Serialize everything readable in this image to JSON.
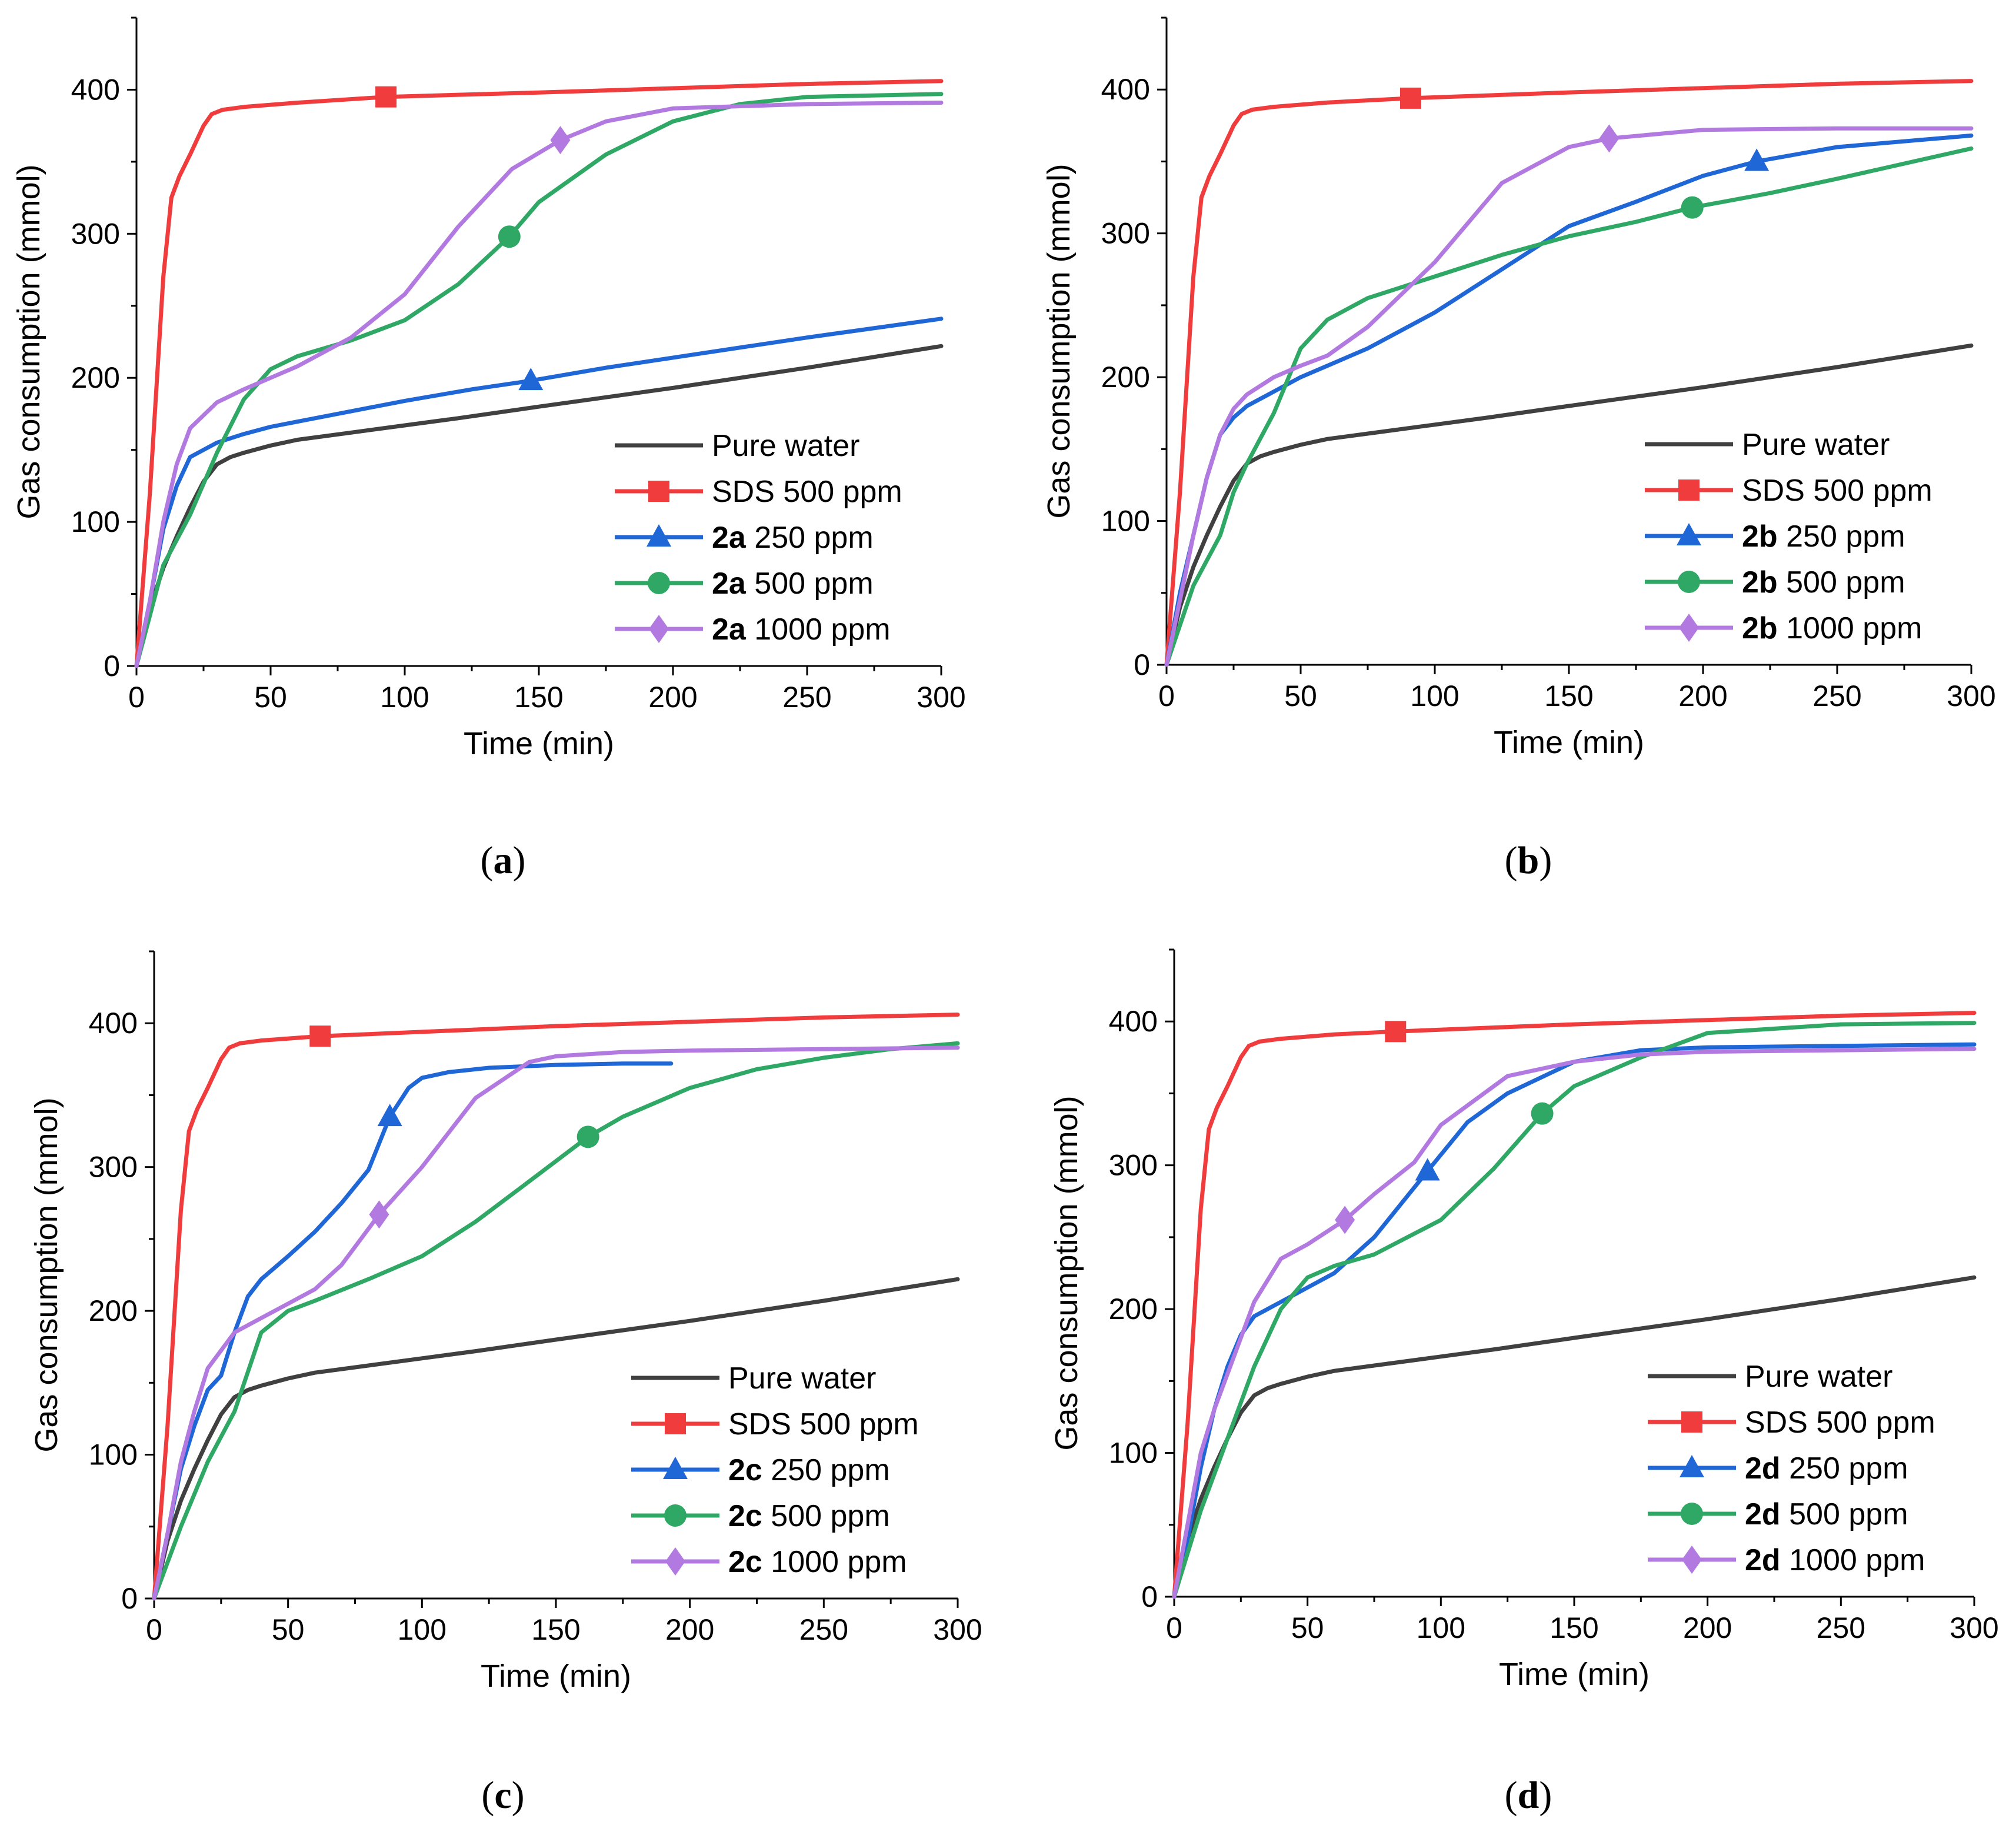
{
  "colors": {
    "pure_water": "#404040",
    "sds": "#f03c3c",
    "c250": "#1f66d6",
    "c500": "#2fa866",
    "c1000": "#b27ae0"
  },
  "chart_data": [
    {
      "type": "line",
      "panel_label": "a",
      "compound": "2a",
      "xlabel": "Time (min)",
      "ylabel": "Gas consumption (mmol)",
      "xlim": [
        0,
        300
      ],
      "ylim": [
        0,
        450
      ],
      "xticks": [
        0,
        50,
        100,
        150,
        200,
        250,
        300
      ],
      "yticks": [
        0,
        100,
        200,
        300,
        400
      ],
      "legend_position": "bottom-right",
      "series": [
        {
          "name": "Pure water",
          "key": "pure_water",
          "marker": "none",
          "x": [
            0,
            5,
            10,
            15,
            20,
            25,
            30,
            35,
            40,
            50,
            60,
            80,
            100,
            120,
            150,
            200,
            250,
            300
          ],
          "y": [
            0,
            40,
            68,
            90,
            110,
            128,
            140,
            145,
            148,
            153,
            157,
            162,
            167,
            172,
            180,
            193,
            207,
            222
          ],
          "marker_at": null
        },
        {
          "name": "SDS 500 ppm",
          "key": "sds",
          "marker": "square",
          "x": [
            0,
            5,
            10,
            13,
            16,
            20,
            25,
            28,
            32,
            40,
            60,
            93,
            150,
            200,
            250,
            300
          ],
          "y": [
            0,
            120,
            270,
            325,
            340,
            355,
            375,
            383,
            386,
            388,
            391,
            395,
            398,
            401,
            404,
            406
          ],
          "marker_at": [
            93,
            395
          ]
        },
        {
          "name": "250 ppm",
          "key": "c250",
          "marker": "triangle",
          "x": [
            0,
            5,
            10,
            15,
            20,
            30,
            40,
            50,
            75,
            100,
            125,
            147,
            175,
            200,
            250,
            300
          ],
          "y": [
            0,
            45,
            95,
            125,
            145,
            155,
            161,
            166,
            175,
            184,
            192,
            198,
            207,
            214,
            228,
            241
          ],
          "marker_at": [
            147,
            198
          ]
        },
        {
          "name": "500 ppm",
          "key": "c500",
          "marker": "circle",
          "x": [
            0,
            10,
            20,
            30,
            40,
            50,
            60,
            80,
            100,
            120,
            139,
            150,
            175,
            200,
            225,
            250,
            300
          ],
          "y": [
            0,
            70,
            105,
            148,
            185,
            206,
            215,
            226,
            240,
            265,
            298,
            322,
            355,
            378,
            390,
            395,
            397
          ],
          "marker_at": [
            139,
            298
          ]
        },
        {
          "name": "1000 ppm",
          "key": "c1000",
          "marker": "diamond",
          "x": [
            0,
            5,
            10,
            15,
            20,
            30,
            40,
            50,
            60,
            80,
            100,
            120,
            140,
            158,
            175,
            200,
            250,
            300
          ],
          "y": [
            0,
            45,
            100,
            140,
            165,
            183,
            192,
            200,
            208,
            228,
            258,
            305,
            345,
            365,
            378,
            387,
            390,
            391
          ],
          "marker_at": [
            158,
            365
          ]
        }
      ]
    },
    {
      "type": "line",
      "panel_label": "b",
      "compound": "2b",
      "xlabel": "Time (min)",
      "ylabel": "Gas consumption (mmol)",
      "xlim": [
        0,
        300
      ],
      "ylim": [
        0,
        450
      ],
      "xticks": [
        0,
        50,
        100,
        150,
        200,
        250,
        300
      ],
      "yticks": [
        0,
        100,
        200,
        300,
        400
      ],
      "legend_position": "bottom-right",
      "series": [
        {
          "name": "Pure water",
          "key": "pure_water",
          "marker": "none",
          "x": [
            0,
            5,
            10,
            15,
            20,
            25,
            30,
            35,
            40,
            50,
            60,
            80,
            100,
            120,
            150,
            200,
            250,
            300
          ],
          "y": [
            0,
            40,
            68,
            90,
            110,
            128,
            140,
            145,
            148,
            153,
            157,
            162,
            167,
            172,
            180,
            193,
            207,
            222
          ],
          "marker_at": null
        },
        {
          "name": "SDS 500 ppm",
          "key": "sds",
          "marker": "square",
          "x": [
            0,
            5,
            10,
            13,
            16,
            20,
            25,
            28,
            32,
            40,
            60,
            91,
            150,
            200,
            250,
            300
          ],
          "y": [
            0,
            120,
            270,
            325,
            340,
            355,
            375,
            383,
            386,
            388,
            391,
            394,
            398,
            401,
            404,
            406
          ],
          "marker_at": [
            91,
            394
          ]
        },
        {
          "name": "250 ppm",
          "key": "c250",
          "marker": "triangle",
          "x": [
            0,
            5,
            10,
            15,
            20,
            25,
            30,
            40,
            50,
            60,
            75,
            100,
            125,
            150,
            175,
            200,
            220,
            250,
            300
          ],
          "y": [
            0,
            50,
            90,
            130,
            160,
            172,
            180,
            190,
            200,
            208,
            220,
            245,
            275,
            305,
            322,
            340,
            350,
            360,
            368
          ],
          "marker_at": [
            220,
            350
          ]
        },
        {
          "name": "500 ppm",
          "key": "c500",
          "marker": "circle",
          "x": [
            0,
            10,
            20,
            25,
            30,
            40,
            50,
            60,
            75,
            100,
            125,
            150,
            175,
            196,
            225,
            250,
            300
          ],
          "y": [
            0,
            55,
            90,
            120,
            140,
            175,
            220,
            240,
            255,
            270,
            285,
            298,
            308,
            318,
            328,
            338,
            359
          ],
          "marker_at": [
            196,
            318
          ]
        },
        {
          "name": "1000 ppm",
          "key": "c1000",
          "marker": "diamond",
          "x": [
            0,
            5,
            10,
            15,
            20,
            25,
            30,
            40,
            50,
            60,
            75,
            90,
            100,
            125,
            150,
            165,
            200,
            250,
            300
          ],
          "y": [
            0,
            45,
            90,
            130,
            160,
            178,
            188,
            200,
            208,
            215,
            235,
            262,
            280,
            335,
            360,
            366,
            372,
            373,
            373
          ],
          "marker_at": [
            165,
            366
          ]
        }
      ]
    },
    {
      "type": "line",
      "panel_label": "c",
      "compound": "2c",
      "xlabel": "Time (min)",
      "ylabel": "Gas consumption (mmol)",
      "xlim": [
        0,
        300
      ],
      "ylim": [
        0,
        450
      ],
      "xticks": [
        0,
        50,
        100,
        150,
        200,
        250,
        300
      ],
      "yticks": [
        0,
        100,
        200,
        300,
        400
      ],
      "legend_position": "bottom-right",
      "series": [
        {
          "name": "Pure water",
          "key": "pure_water",
          "marker": "none",
          "x": [
            0,
            5,
            10,
            15,
            20,
            25,
            30,
            35,
            40,
            50,
            60,
            80,
            100,
            120,
            150,
            200,
            250,
            300
          ],
          "y": [
            0,
            40,
            68,
            90,
            110,
            128,
            140,
            145,
            148,
            153,
            157,
            162,
            167,
            172,
            180,
            193,
            207,
            222
          ],
          "marker_at": null
        },
        {
          "name": "SDS 500 ppm",
          "key": "sds",
          "marker": "square",
          "x": [
            0,
            5,
            10,
            13,
            16,
            20,
            25,
            28,
            32,
            40,
            62,
            100,
            150,
            200,
            250,
            300
          ],
          "y": [
            0,
            120,
            270,
            325,
            340,
            355,
            375,
            383,
            386,
            388,
            391,
            394,
            398,
            401,
            404,
            406
          ],
          "marker_at": [
            62,
            391
          ]
        },
        {
          "name": "250 ppm",
          "key": "c250",
          "marker": "triangle",
          "x": [
            0,
            5,
            10,
            15,
            20,
            25,
            30,
            35,
            40,
            50,
            60,
            70,
            80,
            88,
            95,
            100,
            110,
            125,
            150,
            175,
            193
          ],
          "y": [
            0,
            45,
            90,
            120,
            145,
            155,
            185,
            210,
            222,
            238,
            255,
            275,
            298,
            335,
            355,
            362,
            366,
            369,
            371,
            372,
            372
          ],
          "marker_at": [
            88,
            335
          ]
        },
        {
          "name": "500 ppm",
          "key": "c500",
          "marker": "circle",
          "x": [
            0,
            10,
            20,
            30,
            40,
            50,
            60,
            80,
            100,
            120,
            140,
            162,
            175,
            200,
            225,
            250,
            275,
            300
          ],
          "y": [
            0,
            50,
            95,
            130,
            185,
            200,
            207,
            222,
            238,
            262,
            290,
            321,
            335,
            355,
            368,
            376,
            382,
            386
          ],
          "marker_at": [
            162,
            321
          ]
        },
        {
          "name": "1000 ppm",
          "key": "c1000",
          "marker": "diamond",
          "x": [
            0,
            5,
            10,
            15,
            20,
            30,
            40,
            50,
            60,
            70,
            84,
            100,
            120,
            140,
            150,
            175,
            200,
            250,
            300
          ],
          "y": [
            0,
            45,
            95,
            130,
            160,
            185,
            195,
            205,
            215,
            232,
            267,
            300,
            348,
            373,
            377,
            380,
            381,
            382,
            383
          ],
          "marker_at": [
            84,
            267
          ]
        }
      ]
    },
    {
      "type": "line",
      "panel_label": "d",
      "compound": "2d",
      "xlabel": "Time (min)",
      "ylabel": "Gas consumption (mmol)",
      "xlim": [
        0,
        300
      ],
      "ylim": [
        0,
        450
      ],
      "xticks": [
        0,
        50,
        100,
        150,
        200,
        250,
        300
      ],
      "yticks": [
        0,
        100,
        200,
        300,
        400
      ],
      "legend_position": "bottom-right",
      "series": [
        {
          "name": "Pure water",
          "key": "pure_water",
          "marker": "none",
          "x": [
            0,
            5,
            10,
            15,
            20,
            25,
            30,
            35,
            40,
            50,
            60,
            80,
            100,
            120,
            150,
            200,
            250,
            300
          ],
          "y": [
            0,
            40,
            68,
            90,
            110,
            128,
            140,
            145,
            148,
            153,
            157,
            162,
            167,
            172,
            180,
            193,
            207,
            222
          ],
          "marker_at": null
        },
        {
          "name": "SDS 500 ppm",
          "key": "sds",
          "marker": "square",
          "x": [
            0,
            5,
            10,
            13,
            16,
            20,
            25,
            28,
            32,
            40,
            60,
            83,
            150,
            200,
            250,
            300
          ],
          "y": [
            0,
            120,
            270,
            325,
            340,
            355,
            375,
            383,
            386,
            388,
            391,
            393,
            398,
            401,
            404,
            406
          ],
          "marker_at": [
            83,
            393
          ]
        },
        {
          "name": "250 ppm",
          "key": "c250",
          "marker": "triangle",
          "x": [
            0,
            5,
            10,
            15,
            20,
            25,
            30,
            40,
            50,
            60,
            75,
            95,
            110,
            125,
            150,
            175,
            200,
            250,
            300
          ],
          "y": [
            0,
            40,
            90,
            130,
            160,
            182,
            195,
            205,
            215,
            225,
            250,
            296,
            330,
            350,
            372,
            380,
            382,
            383,
            384
          ],
          "marker_at": [
            95,
            296
          ]
        },
        {
          "name": "500 ppm",
          "key": "c500",
          "marker": "circle",
          "x": [
            0,
            10,
            20,
            30,
            40,
            50,
            60,
            75,
            100,
            120,
            138,
            150,
            175,
            200,
            250,
            300
          ],
          "y": [
            0,
            60,
            110,
            160,
            200,
            222,
            230,
            238,
            262,
            298,
            336,
            355,
            375,
            392,
            398,
            399
          ],
          "marker_at": [
            138,
            336
          ]
        },
        {
          "name": "1000 ppm",
          "key": "c1000",
          "marker": "diamond",
          "x": [
            0,
            5,
            10,
            15,
            20,
            25,
            30,
            40,
            50,
            64,
            75,
            90,
            100,
            125,
            150,
            175,
            200,
            250,
            300
          ],
          "y": [
            0,
            50,
            100,
            130,
            155,
            180,
            205,
            235,
            245,
            262,
            280,
            302,
            328,
            362,
            372,
            377,
            379,
            380,
            381
          ],
          "marker_at": [
            64,
            262
          ]
        }
      ]
    }
  ]
}
